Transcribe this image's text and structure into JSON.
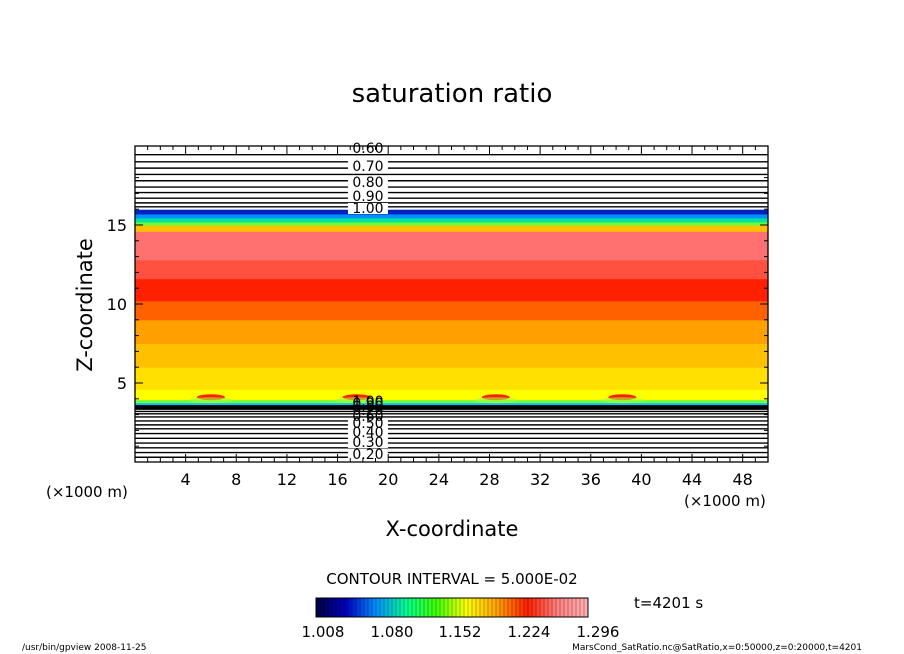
{
  "chart_data": {
    "type": "heatmap",
    "title": "saturation ratio",
    "xlabel": "X-coordinate",
    "ylabel": "Z-coordinate",
    "x_unit": "(×1000 m)",
    "y_unit": "(×1000 m)",
    "xlim": [
      0,
      50
    ],
    "ylim": [
      0,
      20
    ],
    "xticks": [
      4,
      8,
      12,
      16,
      20,
      24,
      28,
      32,
      36,
      40,
      44,
      48
    ],
    "yticks": [
      5,
      10,
      15
    ],
    "contour_interval_text": "CONTOUR INTERVAL = 5.000E-02",
    "time_label": "t=4201 s",
    "upper_contour_labels": [
      "0.60",
      "0.70",
      "0.80",
      "0.90",
      "1.00"
    ],
    "lower_contour_labels": [
      "0.20",
      "0.30",
      "0.40",
      "0.50",
      "0.60",
      "0.70",
      "0.80",
      "0.90",
      "1.00"
    ],
    "colorbar": {
      "tick_labels": [
        "1.008",
        "1.080",
        "1.152",
        "1.224",
        "1.296"
      ],
      "colors": [
        "#000040",
        "#0000c0",
        "#0090ff",
        "#00ff90",
        "#40ff00",
        "#ffff00",
        "#ffa000",
        "#ff2000",
        "#ff8080",
        "#ffb0b0"
      ]
    },
    "field_bands": [
      {
        "z0": 0.0,
        "z1": 3.6,
        "fill": "#ffffff"
      },
      {
        "z0": 3.6,
        "z1": 3.75,
        "fill": "#00c0ff"
      },
      {
        "z0": 3.75,
        "z1": 3.95,
        "fill": "#70ff40"
      },
      {
        "z0": 3.95,
        "z1": 4.6,
        "fill": "#ffff00"
      },
      {
        "z0": 4.6,
        "z1": 6.0,
        "fill": "#ffe000"
      },
      {
        "z0": 6.0,
        "z1": 7.5,
        "fill": "#ffc000"
      },
      {
        "z0": 7.5,
        "z1": 9.0,
        "fill": "#ffa000"
      },
      {
        "z0": 9.0,
        "z1": 10.2,
        "fill": "#ff6000"
      },
      {
        "z0": 10.2,
        "z1": 11.6,
        "fill": "#ff2000"
      },
      {
        "z0": 11.6,
        "z1": 12.8,
        "fill": "#ff5040"
      },
      {
        "z0": 12.8,
        "z1": 14.6,
        "fill": "#ff7070"
      },
      {
        "z0": 14.6,
        "z1": 15.0,
        "fill": "#ffc000"
      },
      {
        "z0": 15.0,
        "z1": 15.2,
        "fill": "#60ff40"
      },
      {
        "z0": 15.2,
        "z1": 15.45,
        "fill": "#00e0a0"
      },
      {
        "z0": 15.45,
        "z1": 15.7,
        "fill": "#0090ff"
      },
      {
        "z0": 15.7,
        "z1": 16.0,
        "fill": "#0020c0"
      },
      {
        "z0": 16.0,
        "z1": 20.0,
        "fill": "#ffffff"
      }
    ],
    "hotspots_x": [
      6,
      17.5,
      28.5,
      38.5
    ],
    "hotspot_z": 4.1
  },
  "footer": {
    "left": "/usr/bin/gpview  2008-11-25",
    "right": "MarsCond_SatRatio.nc@SatRatio,x=0:50000,z=0:20000,t=4201"
  }
}
